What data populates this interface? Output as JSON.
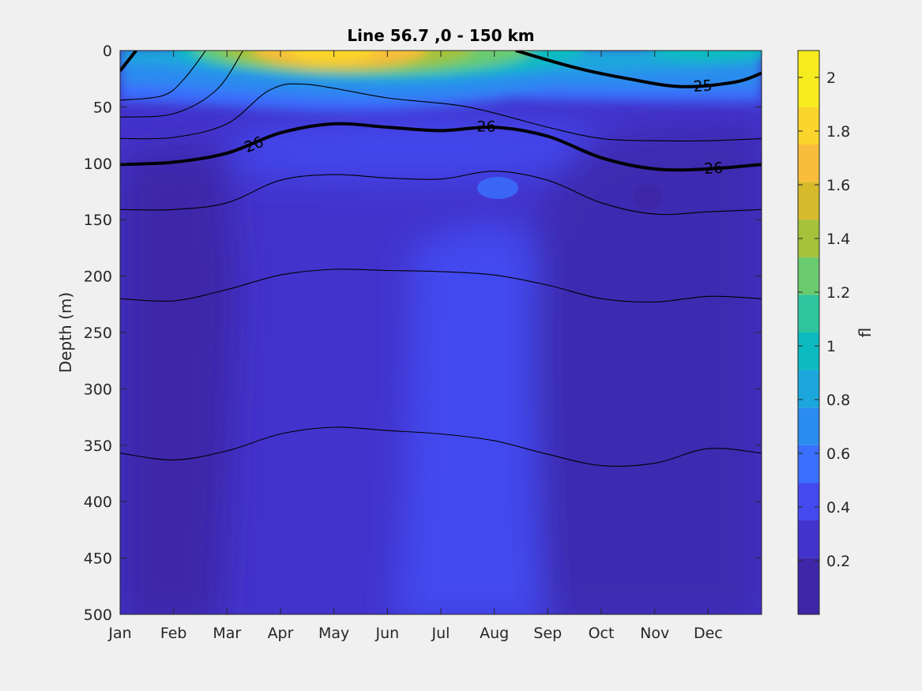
{
  "chart_data": {
    "type": "heatmap",
    "title": "Line 56.7 ,0 - 150 km",
    "xlabel": "",
    "ylabel": "Depth (m)",
    "colorbar_label": "fl",
    "x_tick_labels": [
      "Jan",
      "Feb",
      "Mar",
      "Apr",
      "May",
      "Jun",
      "Jul",
      "Aug",
      "Sep",
      "Oct",
      "Nov",
      "Dec"
    ],
    "xlim": [
      1,
      13
    ],
    "ylim": [
      0,
      500
    ],
    "y_reversed": true,
    "y_ticks": [
      0,
      50,
      100,
      150,
      200,
      250,
      300,
      350,
      400,
      450,
      500
    ],
    "colorbar_range": [
      0,
      2.1
    ],
    "colorbar_ticks": [
      0.2,
      0.4,
      0.6,
      0.8,
      1,
      1.2,
      1.4,
      1.6,
      1.8,
      2
    ],
    "colorbar_tick_labels": [
      "0.2",
      "0.4",
      "0.6",
      "0.8",
      "1",
      "1.2",
      "1.4",
      "1.6",
      "1.8",
      "2"
    ],
    "colormap": "parula",
    "colormap_colors": [
      "#3e26a8",
      "#4233cc",
      "#4349ef",
      "#3a6efc",
      "#2a8cee",
      "#1ba7dc",
      "#0bbbc0",
      "#2ec59e",
      "#6acb6e",
      "#a4c23a",
      "#d5ba2c",
      "#f8be3b",
      "#fbd52b",
      "#f7ec1f"
    ],
    "grid": false,
    "fields": [
      {
        "name": "surface-bloom",
        "month": 5.0,
        "depth": 8,
        "value": 1.9
      },
      {
        "name": "deep-minimum-winter",
        "month": 1.9,
        "depth": 300,
        "value": 0.08
      },
      {
        "name": "deep-band-summer",
        "month": 7.4,
        "depth": 400,
        "value": 0.32
      }
    ],
    "density_contours": [
      {
        "label": "25",
        "heavy": true,
        "points": [
          [
            1.0,
            18
          ],
          [
            1.3,
            0
          ]
        ]
      },
      {
        "label": "25",
        "heavy": true,
        "points": [
          [
            8.4,
            0
          ],
          [
            9.5,
            15
          ],
          [
            10.5,
            25
          ],
          [
            11.5,
            32
          ],
          [
            12.5,
            28
          ],
          [
            13.0,
            20
          ]
        ]
      },
      {
        "label": "26",
        "heavy": true,
        "points": [
          [
            1.0,
            101
          ],
          [
            2.0,
            99
          ],
          [
            3.0,
            91
          ],
          [
            4.0,
            73
          ],
          [
            5.0,
            65
          ],
          [
            6.0,
            68
          ],
          [
            7.0,
            71
          ],
          [
            8.0,
            68
          ],
          [
            9.0,
            76
          ],
          [
            10.0,
            95
          ],
          [
            11.0,
            105
          ],
          [
            12.0,
            105
          ],
          [
            13.0,
            101
          ]
        ]
      },
      {
        "label": "",
        "heavy": false,
        "points": [
          [
            1.0,
            44
          ],
          [
            1.8,
            40
          ],
          [
            2.2,
            25
          ],
          [
            2.6,
            0
          ]
        ]
      },
      {
        "label": "",
        "heavy": false,
        "points": [
          [
            1.0,
            59
          ],
          [
            2.0,
            56
          ],
          [
            2.8,
            35
          ],
          [
            3.3,
            0
          ]
        ]
      },
      {
        "label": "",
        "heavy": false,
        "points": [
          [
            1.0,
            78
          ],
          [
            2.0,
            77
          ],
          [
            3.0,
            65
          ],
          [
            3.8,
            35
          ],
          [
            4.5,
            30
          ],
          [
            6.0,
            42
          ],
          [
            7.5,
            50
          ],
          [
            9.0,
            68
          ],
          [
            10.0,
            78
          ],
          [
            11.0,
            80
          ],
          [
            12.0,
            80
          ],
          [
            13.0,
            78
          ]
        ]
      },
      {
        "label": "",
        "heavy": false,
        "points": [
          [
            1.0,
            141
          ],
          [
            2.0,
            141
          ],
          [
            3.0,
            135
          ],
          [
            4.0,
            115
          ],
          [
            5.0,
            110
          ],
          [
            6.0,
            113
          ],
          [
            7.0,
            114
          ],
          [
            8.0,
            107
          ],
          [
            9.0,
            115
          ],
          [
            10.0,
            135
          ],
          [
            11.0,
            145
          ],
          [
            12.0,
            143
          ],
          [
            13.0,
            141
          ]
        ]
      },
      {
        "label": "",
        "heavy": false,
        "points": [
          [
            1.0,
            220
          ],
          [
            2.0,
            222
          ],
          [
            3.0,
            212
          ],
          [
            4.0,
            199
          ],
          [
            5.0,
            194
          ],
          [
            6.0,
            195
          ],
          [
            7.0,
            196
          ],
          [
            8.0,
            199
          ],
          [
            9.0,
            208
          ],
          [
            10.0,
            220
          ],
          [
            11.0,
            223
          ],
          [
            12.0,
            218
          ],
          [
            13.0,
            220
          ]
        ]
      },
      {
        "label": "",
        "heavy": false,
        "points": [
          [
            1.0,
            357
          ],
          [
            2.0,
            363
          ],
          [
            3.0,
            355
          ],
          [
            4.0,
            340
          ],
          [
            5.0,
            334
          ],
          [
            6.0,
            337
          ],
          [
            7.0,
            340
          ],
          [
            8.0,
            346
          ],
          [
            9.0,
            358
          ],
          [
            10.0,
            368
          ],
          [
            11.0,
            366
          ],
          [
            12.0,
            353
          ],
          [
            13.0,
            357
          ]
        ]
      }
    ],
    "contour_labels": [
      {
        "text": "25",
        "month": 11.9,
        "depth": 31,
        "angle": -4
      },
      {
        "text": "26",
        "month": 3.5,
        "depth": 83,
        "angle": -22
      },
      {
        "text": "26",
        "month": 7.85,
        "depth": 67,
        "angle": 0
      },
      {
        "text": "26",
        "month": 12.1,
        "depth": 104,
        "angle": -3
      }
    ]
  }
}
